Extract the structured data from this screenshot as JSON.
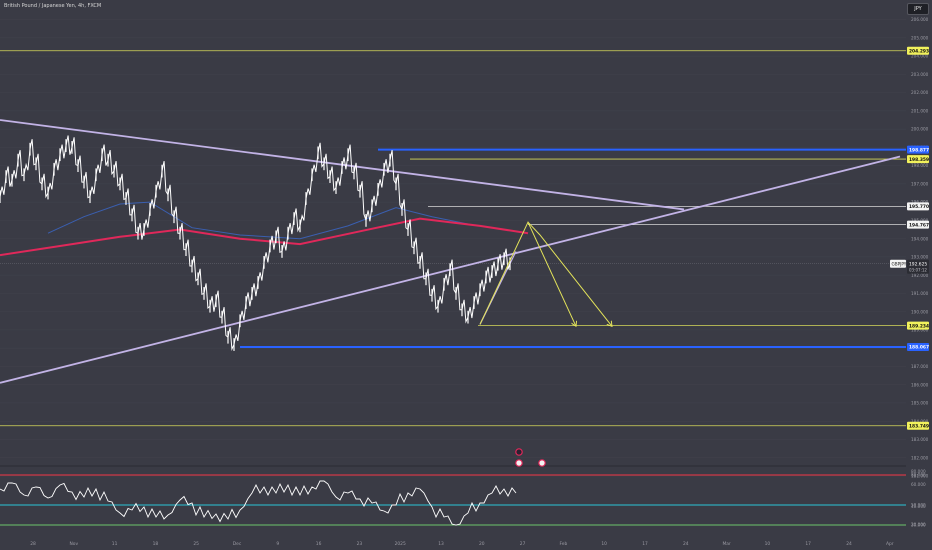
{
  "header": {
    "title": "British Pound / Japanese Yen, 4h, FXCM",
    "currency": "JPY"
  },
  "colors": {
    "background": "#3a3b45",
    "price": "#ffffff",
    "ma_red": "#e0285a",
    "ma_blue": "#3a5fb0",
    "trend_lilac": "#c2b3e6",
    "level_blue": "#2962ff",
    "level_yellow": "#d6d95a",
    "level_white": "#d8d8d8",
    "rsi_line": "#ffffff",
    "rsi_red": "#f23645",
    "rsi_cyan": "#29c4d6",
    "rsi_green": "#6cc56c",
    "arrow_yellow": "#e3e35a"
  },
  "chart_data": {
    "type": "line",
    "title": "British Pound / Japanese Yen, 4h, FXCM",
    "symbol": "GBPJPY",
    "last_price": "192.625",
    "countdown": "03:07:12",
    "x_tick_labels": [
      "28",
      "Nov",
      "11",
      "18",
      "25",
      "Dec",
      "9",
      "16",
      "23",
      "2025",
      "13",
      "20",
      "27",
      "Feb",
      "10",
      "17",
      "24",
      "Mar",
      "10",
      "17",
      "24",
      "Apr"
    ],
    "y_tick_labels": [
      "206.000",
      "205.000",
      "204.000",
      "203.000",
      "202.000",
      "201.000",
      "200.000",
      "199.000",
      "198.000",
      "197.000",
      "196.000",
      "195.000",
      "194.000",
      "193.000",
      "192.000",
      "191.000",
      "190.000",
      "189.000",
      "188.000",
      "187.000",
      "186.000",
      "185.000",
      "184.000",
      "183.000",
      "182.000",
      "181.000"
    ],
    "ylim": [
      181.6,
      206.8
    ],
    "horizontal_levels": [
      {
        "value": 204.293,
        "label": "204.293",
        "color": "#d6d95a",
        "badge": "yellow"
      },
      {
        "value": 198.877,
        "label": "198.877",
        "color": "#2962ff",
        "badge": "blue"
      },
      {
        "value": 198.359,
        "label": "198.359",
        "color": "#d6d95a",
        "badge": "yellow"
      },
      {
        "value": 195.77,
        "label": "195.770",
        "color": "#d8d8d8",
        "badge": "white"
      },
      {
        "value": 194.767,
        "label": "194.767",
        "color": "#d8d8d8",
        "badge": "white"
      },
      {
        "value": 189.234,
        "label": "189.234",
        "color": "#d6d95a",
        "badge": "yellow"
      },
      {
        "value": 188.067,
        "label": "188.067",
        "color": "#2962ff",
        "badge": "blue"
      },
      {
        "value": 183.749,
        "label": "183.749",
        "color": "#d6d95a",
        "badge": "yellow"
      }
    ],
    "price_series": [
      [
        0,
        196.3
      ],
      [
        1,
        197.4
      ],
      [
        2,
        197.2
      ],
      [
        3,
        198.3
      ],
      [
        4,
        197.5
      ],
      [
        5,
        198.9
      ],
      [
        6,
        198.1
      ],
      [
        7,
        197.0
      ],
      [
        8,
        196.5
      ],
      [
        9,
        197.8
      ],
      [
        10,
        198.6
      ],
      [
        11,
        199.1
      ],
      [
        12,
        199.0
      ],
      [
        13,
        198.0
      ],
      [
        14,
        197.1
      ],
      [
        15,
        196.3
      ],
      [
        16,
        197.5
      ],
      [
        17,
        198.6
      ],
      [
        18,
        198.3
      ],
      [
        19,
        197.7
      ],
      [
        20,
        197.0
      ],
      [
        21,
        196.2
      ],
      [
        22,
        195.3
      ],
      [
        23,
        194.3
      ],
      [
        24,
        194.5
      ],
      [
        25,
        195.6
      ],
      [
        26,
        196.6
      ],
      [
        27,
        197.7
      ],
      [
        28,
        196.4
      ],
      [
        29,
        195.2
      ],
      [
        30,
        194.3
      ],
      [
        31,
        193.4
      ],
      [
        32,
        192.5
      ],
      [
        33,
        191.8
      ],
      [
        34,
        191.0
      ],
      [
        35,
        190.3
      ],
      [
        36,
        190.6
      ],
      [
        37,
        189.7
      ],
      [
        38,
        188.6
      ],
      [
        39,
        188.2
      ],
      [
        40,
        189.5
      ],
      [
        41,
        190.5
      ],
      [
        42,
        191.0
      ],
      [
        43,
        191.6
      ],
      [
        44,
        192.7
      ],
      [
        45,
        193.6
      ],
      [
        46,
        194.1
      ],
      [
        47,
        193.3
      ],
      [
        48,
        194.3
      ],
      [
        49,
        195.1
      ],
      [
        50,
        194.7
      ],
      [
        51,
        196.2
      ],
      [
        52,
        197.5
      ],
      [
        53,
        198.7
      ],
      [
        54,
        198.1
      ],
      [
        55,
        197.4
      ],
      [
        56,
        196.8
      ],
      [
        57,
        197.9
      ],
      [
        58,
        198.6
      ],
      [
        59,
        197.6
      ],
      [
        60,
        196.6
      ],
      [
        61,
        195.0
      ],
      [
        62,
        195.8
      ],
      [
        63,
        196.7
      ],
      [
        64,
        197.8
      ],
      [
        65,
        198.3
      ],
      [
        66,
        197.0
      ],
      [
        67,
        195.6
      ],
      [
        68,
        194.5
      ],
      [
        69,
        193.5
      ],
      [
        70,
        192.7
      ],
      [
        71,
        191.8
      ],
      [
        72,
        190.9
      ],
      [
        73,
        190.3
      ],
      [
        74,
        191.5
      ],
      [
        75,
        192.3
      ],
      [
        76,
        191.0
      ],
      [
        77,
        190.1
      ],
      [
        78,
        189.7
      ],
      [
        79,
        190.5
      ],
      [
        80,
        191.2
      ],
      [
        81,
        191.9
      ],
      [
        82,
        192.2
      ],
      [
        83,
        192.6
      ],
      [
        84,
        192.9
      ],
      [
        85,
        192.625
      ]
    ],
    "ma_red_series": [
      [
        0,
        193.1
      ],
      [
        10,
        193.6
      ],
      [
        20,
        194.1
      ],
      [
        30,
        194.5
      ],
      [
        40,
        194.0
      ],
      [
        50,
        193.7
      ],
      [
        60,
        194.4
      ],
      [
        70,
        195.1
      ],
      [
        80,
        194.7
      ],
      [
        88,
        194.3
      ]
    ],
    "ma_blue_series": [
      [
        8,
        194.3
      ],
      [
        14,
        195.2
      ],
      [
        20,
        195.9
      ],
      [
        25,
        196.0
      ],
      [
        32,
        194.6
      ],
      [
        40,
        194.2
      ],
      [
        50,
        194.0
      ],
      [
        58,
        194.7
      ],
      [
        66,
        195.7
      ],
      [
        72,
        195.2
      ],
      [
        78,
        194.8
      ]
    ],
    "trendlines": [
      {
        "name": "descending",
        "from": [
          0,
          200.5
        ],
        "to": [
          114,
          195.6
        ]
      },
      {
        "name": "ascending",
        "from": [
          0,
          186.1
        ],
        "to": [
          150,
          198.5
        ]
      }
    ],
    "projection_arrows": [
      {
        "points": [
          [
            80,
            189.3
          ],
          [
            88,
            194.9
          ],
          [
            96,
            189.2
          ]
        ]
      },
      {
        "points": [
          [
            88,
            194.9
          ],
          [
            90,
            194.2
          ],
          [
            102,
            189.2
          ]
        ]
      }
    ],
    "rsi": {
      "levels": [
        {
          "value": 80,
          "label": "80.000",
          "color": "#f23645"
        },
        {
          "value": 50,
          "label": "50.000",
          "color": "#29c4d6"
        },
        {
          "value": 30,
          "label": "30.000",
          "color": "#6cc56c"
        }
      ],
      "y_tick_labels": [
        "80.000",
        "60.000",
        "40.000",
        "20.000"
      ],
      "series": [
        [
          0,
          66
        ],
        [
          2,
          72
        ],
        [
          4,
          60
        ],
        [
          6,
          68
        ],
        [
          8,
          57
        ],
        [
          10,
          70
        ],
        [
          12,
          63
        ],
        [
          14,
          58
        ],
        [
          16,
          66
        ],
        [
          18,
          54
        ],
        [
          20,
          42
        ],
        [
          22,
          45
        ],
        [
          24,
          48
        ],
        [
          26,
          38
        ],
        [
          28,
          40
        ],
        [
          30,
          55
        ],
        [
          32,
          52
        ],
        [
          34,
          38
        ],
        [
          36,
          41
        ],
        [
          38,
          36
        ],
        [
          40,
          45
        ],
        [
          42,
          62
        ],
        [
          44,
          68
        ],
        [
          46,
          62
        ],
        [
          48,
          70
        ],
        [
          50,
          60
        ],
        [
          52,
          68
        ],
        [
          54,
          74
        ],
        [
          56,
          58
        ],
        [
          58,
          62
        ],
        [
          60,
          56
        ],
        [
          62,
          52
        ],
        [
          64,
          44
        ],
        [
          66,
          50
        ],
        [
          68,
          62
        ],
        [
          70,
          66
        ],
        [
          72,
          48
        ],
        [
          74,
          38
        ],
        [
          76,
          30
        ],
        [
          78,
          42
        ],
        [
          80,
          52
        ],
        [
          82,
          62
        ],
        [
          84,
          66
        ],
        [
          86,
          62
        ]
      ]
    }
  }
}
